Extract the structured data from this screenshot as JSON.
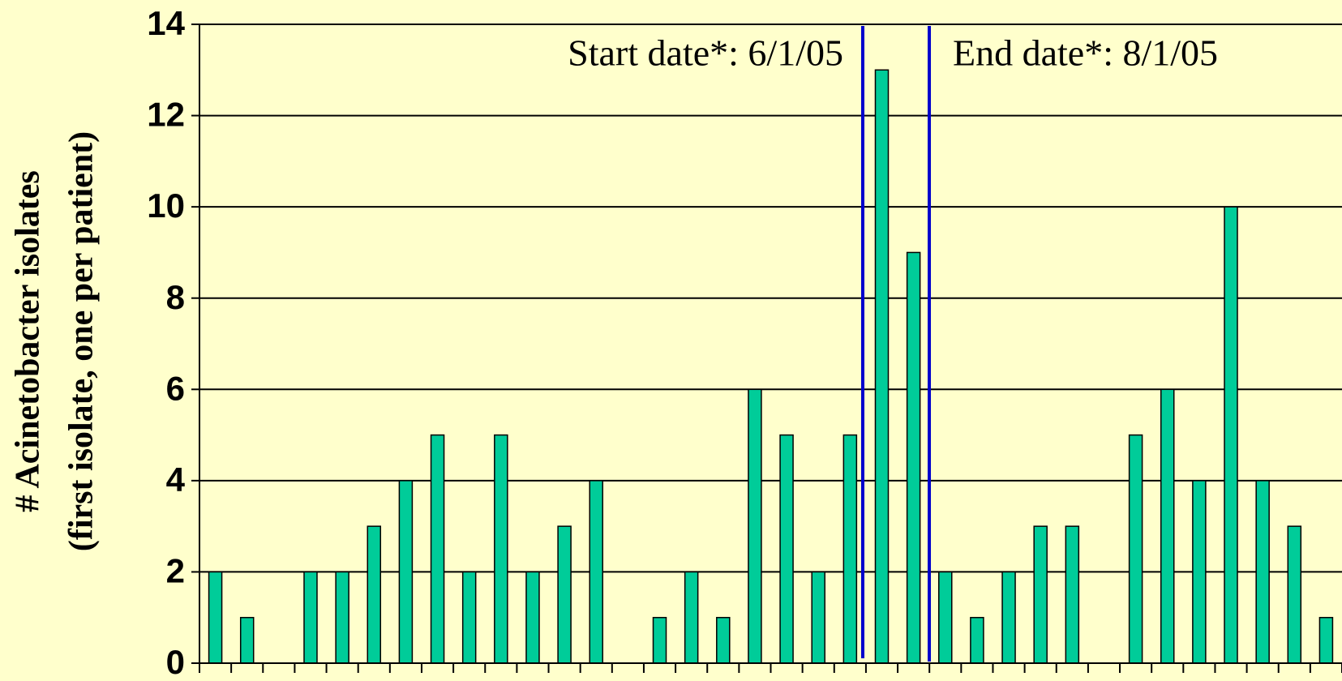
{
  "chart_data": {
    "type": "bar",
    "ylabel": [
      "# Acinetobacter isolates",
      "(first isolate, one per patient)"
    ],
    "annotations": [
      "Start date*: 6/1/05",
      "End date*: 8/1/05"
    ],
    "categories": [
      null,
      null,
      null,
      null,
      null,
      null,
      null,
      null,
      null,
      null,
      null,
      null,
      null,
      null,
      null,
      null,
      null,
      null,
      null,
      null,
      null,
      null,
      null,
      null,
      null,
      null,
      null,
      null,
      null,
      null,
      null,
      null,
      null,
      null,
      null,
      null
    ],
    "values": [
      2,
      1,
      0,
      2,
      2,
      3,
      4,
      5,
      2,
      5,
      2,
      3,
      4,
      0,
      1,
      2,
      1,
      6,
      5,
      2,
      5,
      13,
      9,
      2,
      1,
      2,
      3,
      3,
      0,
      5,
      6,
      4,
      10,
      4,
      3,
      1
    ],
    "color": "#00cc99",
    "ylim": [
      0,
      14
    ],
    "yticks": [
      0,
      2,
      4,
      6,
      8,
      10,
      12,
      14
    ],
    "grid": true
  }
}
